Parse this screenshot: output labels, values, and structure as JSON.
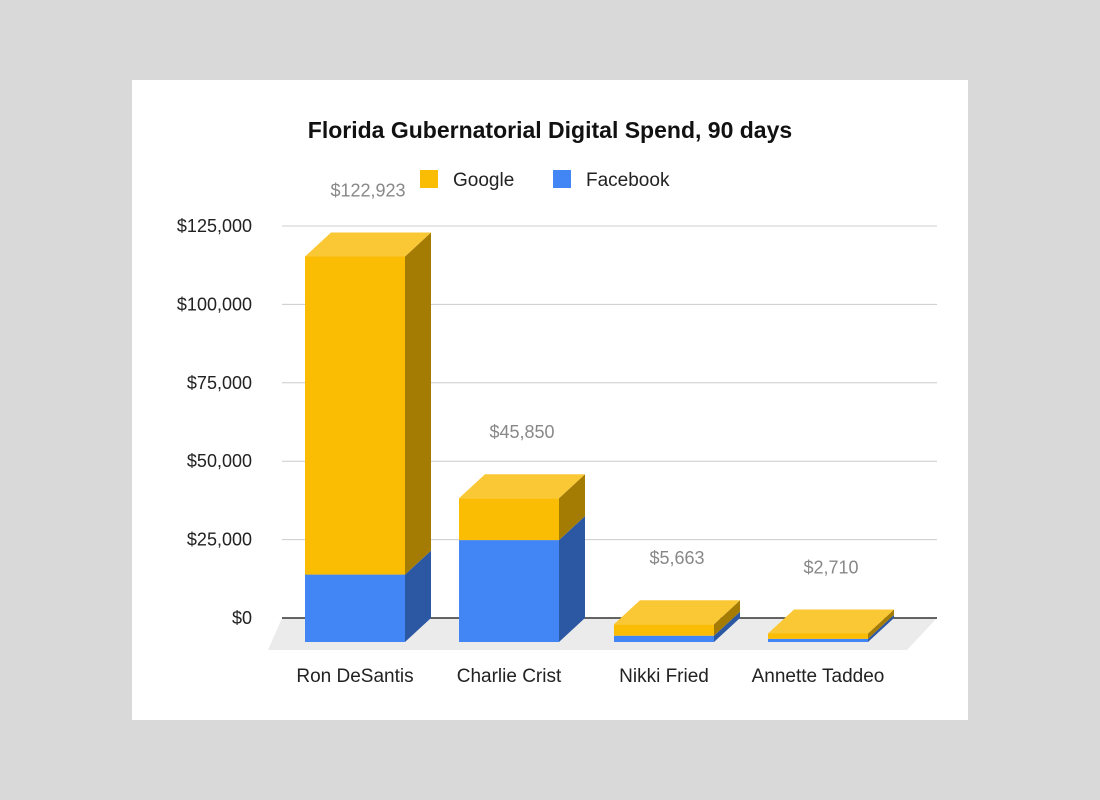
{
  "colors": {
    "google": "#fbbc04",
    "google_top": "#fbc835",
    "google_side": "#a57c03",
    "facebook": "#4285f4",
    "facebook_top": "#4285f4",
    "facebook_side": "#2c58a3",
    "floor": "#ebebeb",
    "grid": "#cccccc",
    "baseline": "#333333"
  },
  "chart_data": {
    "type": "bar",
    "stacked": true,
    "three_d": true,
    "title": "Florida Gubernatorial Digital Spend, 90 days",
    "legend": {
      "position": "top",
      "entries": [
        "Google",
        "Facebook"
      ]
    },
    "categories": [
      "Ron DeSantis",
      "Charlie Crist",
      "Nikki Fried",
      "Annette Taddeo"
    ],
    "series": [
      {
        "name": "Facebook",
        "values": [
          21500,
          32500,
          2000,
          1000
        ]
      },
      {
        "name": "Google",
        "values": [
          101423,
          13350,
          3663,
          1710
        ]
      }
    ],
    "totals": [
      "$122,923",
      "$45,850",
      "$5,663",
      "$2,710"
    ],
    "y_ticks": [
      {
        "value": 0,
        "label": "$0"
      },
      {
        "value": 25000,
        "label": "$25,000"
      },
      {
        "value": 50000,
        "label": "$50,000"
      },
      {
        "value": 75000,
        "label": "$75,000"
      },
      {
        "value": 100000,
        "label": "$100,000"
      },
      {
        "value": 125000,
        "label": "$125,000"
      }
    ],
    "ylim": [
      0,
      125000
    ],
    "grid": true
  }
}
